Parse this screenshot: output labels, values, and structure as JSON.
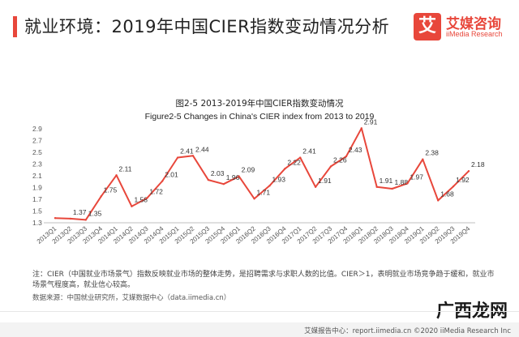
{
  "header": {
    "title": "就业环境：2019年中国CIER指数变动情况分析"
  },
  "logo": {
    "mark": "艾",
    "name": "艾媒咨询",
    "subtitle": "iiMedia Research"
  },
  "chart_data": {
    "type": "line",
    "title": "图2-5 2013-2019年中国CIER指数变动情况",
    "subtitle": "Figure2-5 Changes in China's CIER index from 2013 to 2019",
    "categories": [
      "2013Q1",
      "2013Q2",
      "2013Q3",
      "2013Q4",
      "2014Q1",
      "2014Q2",
      "2014Q3",
      "2014Q4",
      "2015Q1",
      "2015Q2",
      "2015Q3",
      "2015Q4",
      "2016Q1",
      "2016Q2",
      "2016Q3",
      "2016Q4",
      "2017Q1",
      "2017Q2",
      "2017Q3",
      "2017Q4",
      "2018Q1",
      "2018Q2",
      "2018Q3",
      "2018Q4",
      "2019Q1",
      "2019Q2",
      "2019Q3",
      "2019Q4"
    ],
    "values": [
      1.38,
      1.37,
      1.35,
      1.75,
      2.11,
      1.58,
      1.72,
      2.01,
      2.41,
      2.44,
      2.03,
      1.96,
      2.09,
      1.71,
      1.93,
      2.22,
      2.41,
      1.91,
      2.26,
      2.43,
      2.91,
      1.91,
      1.88,
      1.97,
      2.38,
      1.68,
      1.92,
      2.18
    ],
    "labels": [
      "",
      "1.37",
      "1.35",
      "1.75",
      "2.11",
      "1.58",
      "1.72",
      "2.01",
      "2.41",
      "2.44",
      "2.03",
      "1.96",
      "2.09",
      "1.71",
      "1.93",
      "2.22",
      "2.41",
      "1.91",
      "2.26",
      "2.43",
      "2.91",
      "1.91",
      "1.88",
      "1.97",
      "2.38",
      "1.68",
      "1.92",
      "2.18"
    ],
    "yticks": [
      "2.9",
      "2.7",
      "2.5",
      "2.3",
      "2.1",
      "1.9",
      "1.7",
      "1.5",
      "1.3"
    ],
    "ylim": [
      1.3,
      2.9
    ],
    "xlabel": "",
    "ylabel": "",
    "grid": false,
    "line_color": "#e8473b"
  },
  "note": "注：CIER（中国就业市场景气）指数反映就业市场的整体走势，是招聘需求与求职人数的比值。CIER＞1，表明就业市场竞争趋于缓和，就业市场景气程度高，就业信心较高。",
  "source": "数据来源：中国就业研究所，艾媒数据中心（data.iimedia.cn）",
  "footer": "艾媒报告中心：report.iimedia.cn  ©2020  iiMedia Research Inc",
  "watermark": "广西龙网"
}
